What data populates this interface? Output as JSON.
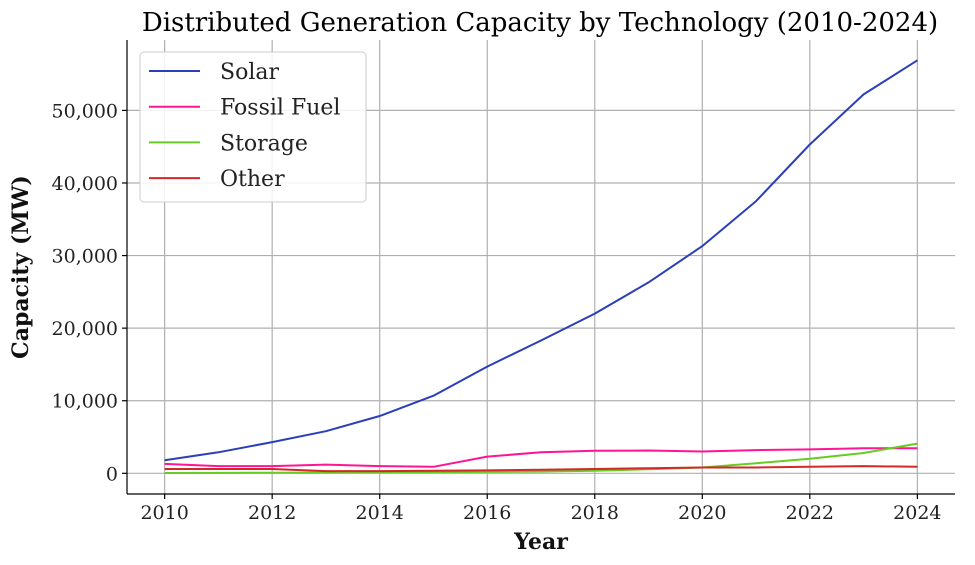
{
  "chart_data": {
    "type": "line",
    "title": "Distributed Generation Capacity by Technology (2010-2024)",
    "xlabel": "Year",
    "ylabel": "Capacity (MW)",
    "x": [
      2010,
      2011,
      2012,
      2013,
      2014,
      2015,
      2016,
      2017,
      2018,
      2019,
      2020,
      2021,
      2022,
      2023,
      2024
    ],
    "xlim": [
      2009.3,
      2024.7
    ],
    "ylim": [
      -2850,
      59700
    ],
    "xticks": [
      2010,
      2012,
      2014,
      2016,
      2018,
      2020,
      2022,
      2024
    ],
    "xtick_labels": [
      "2010",
      "2012",
      "2014",
      "2016",
      "2018",
      "2020",
      "2022",
      "2024"
    ],
    "yticks": [
      0,
      10000,
      20000,
      30000,
      40000,
      50000
    ],
    "ytick_labels": [
      "0",
      "10,000",
      "20,000",
      "30,000",
      "40,000",
      "50,000"
    ],
    "grid": true,
    "legend_position": "top-left",
    "series": [
      {
        "name": "Solar",
        "color": "#2b3fb8",
        "values": [
          1800,
          2900,
          4300,
          5800,
          7900,
          10700,
          14700,
          18300,
          22000,
          26300,
          31300,
          37500,
          45300,
          52200,
          56900
        ]
      },
      {
        "name": "Fossil Fuel",
        "color": "#ff1493",
        "values": [
          1300,
          1000,
          1000,
          1200,
          1000,
          900,
          2300,
          2900,
          3100,
          3150,
          3000,
          3200,
          3300,
          3450,
          3450
        ]
      },
      {
        "name": "Storage",
        "color": "#66cc22",
        "values": [
          50,
          60,
          80,
          100,
          120,
          150,
          200,
          250,
          350,
          550,
          800,
          1400,
          2000,
          2800,
          4100
        ]
      },
      {
        "name": "Other",
        "color": "#d62728",
        "values": [
          600,
          600,
          600,
          300,
          300,
          350,
          400,
          500,
          600,
          700,
          800,
          800,
          900,
          1000,
          900
        ]
      }
    ]
  }
}
